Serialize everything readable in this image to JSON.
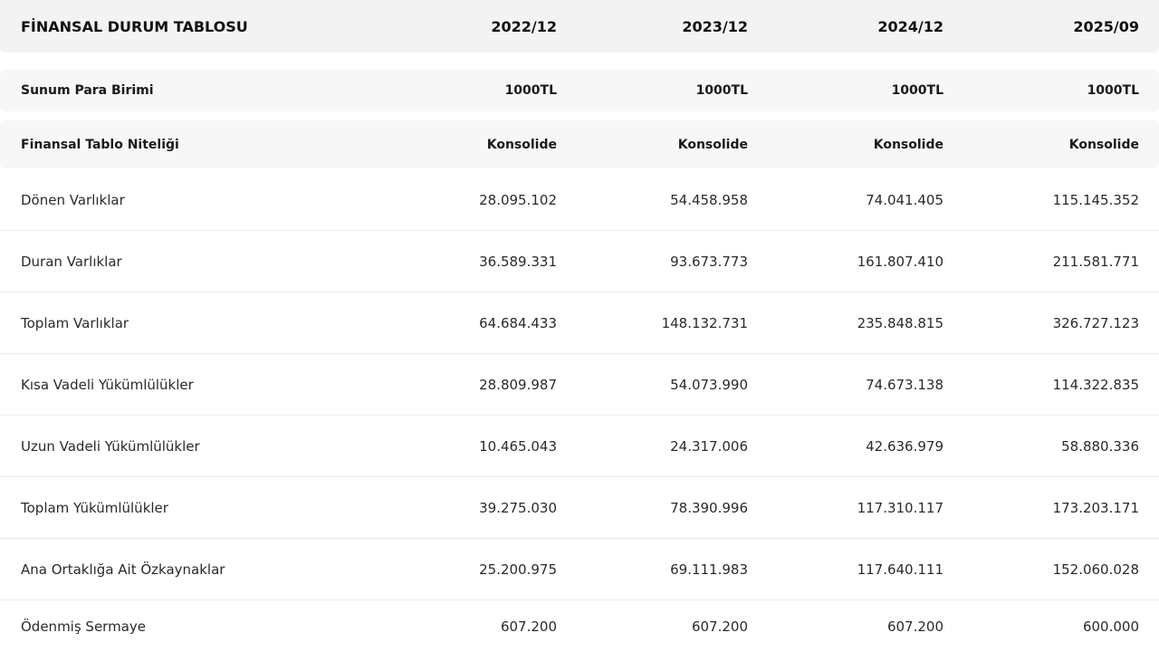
{
  "table": {
    "header": [
      "FİNANSAL DURUM TABLOSU",
      "2022/12",
      "2023/12",
      "2024/12",
      "2025/09"
    ],
    "currency_row": {
      "label": "Sunum Para Birimi",
      "values": [
        "1000TL",
        "1000TL",
        "1000TL",
        "1000TL"
      ]
    },
    "type_row": {
      "label": "Finansal Tablo Niteliği",
      "values": [
        "Konsolide",
        "Konsolide",
        "Konsolide",
        "Konsolide"
      ]
    },
    "rows": [
      {
        "label": "Dönen Varlıklar",
        "values": [
          "28.095.102",
          "54.458.958",
          "74.041.405",
          "115.145.352"
        ]
      },
      {
        "label": "Duran Varlıklar",
        "values": [
          "36.589.331",
          "93.673.773",
          "161.807.410",
          "211.581.771"
        ]
      },
      {
        "label": "Toplam Varlıklar",
        "values": [
          "64.684.433",
          "148.132.731",
          "235.848.815",
          "326.727.123"
        ]
      },
      {
        "label": "Kısa Vadeli Yükümlülükler",
        "values": [
          "28.809.987",
          "54.073.990",
          "74.673.138",
          "114.322.835"
        ]
      },
      {
        "label": "Uzun Vadeli Yükümlülükler",
        "values": [
          "10.465.043",
          "24.317.006",
          "42.636.979",
          "58.880.336"
        ]
      },
      {
        "label": "Toplam Yükümlülükler",
        "values": [
          "39.275.030",
          "78.390.996",
          "117.310.117",
          "173.203.171"
        ]
      },
      {
        "label": "Ana Ortaklığa Ait Özkaynaklar",
        "values": [
          "25.200.975",
          "69.111.983",
          "117.640.111",
          "152.060.028"
        ]
      },
      {
        "label": "Ödenmiş Sermaye",
        "values": [
          "607.200",
          "607.200",
          "607.200",
          "600.000"
        ]
      }
    ]
  }
}
